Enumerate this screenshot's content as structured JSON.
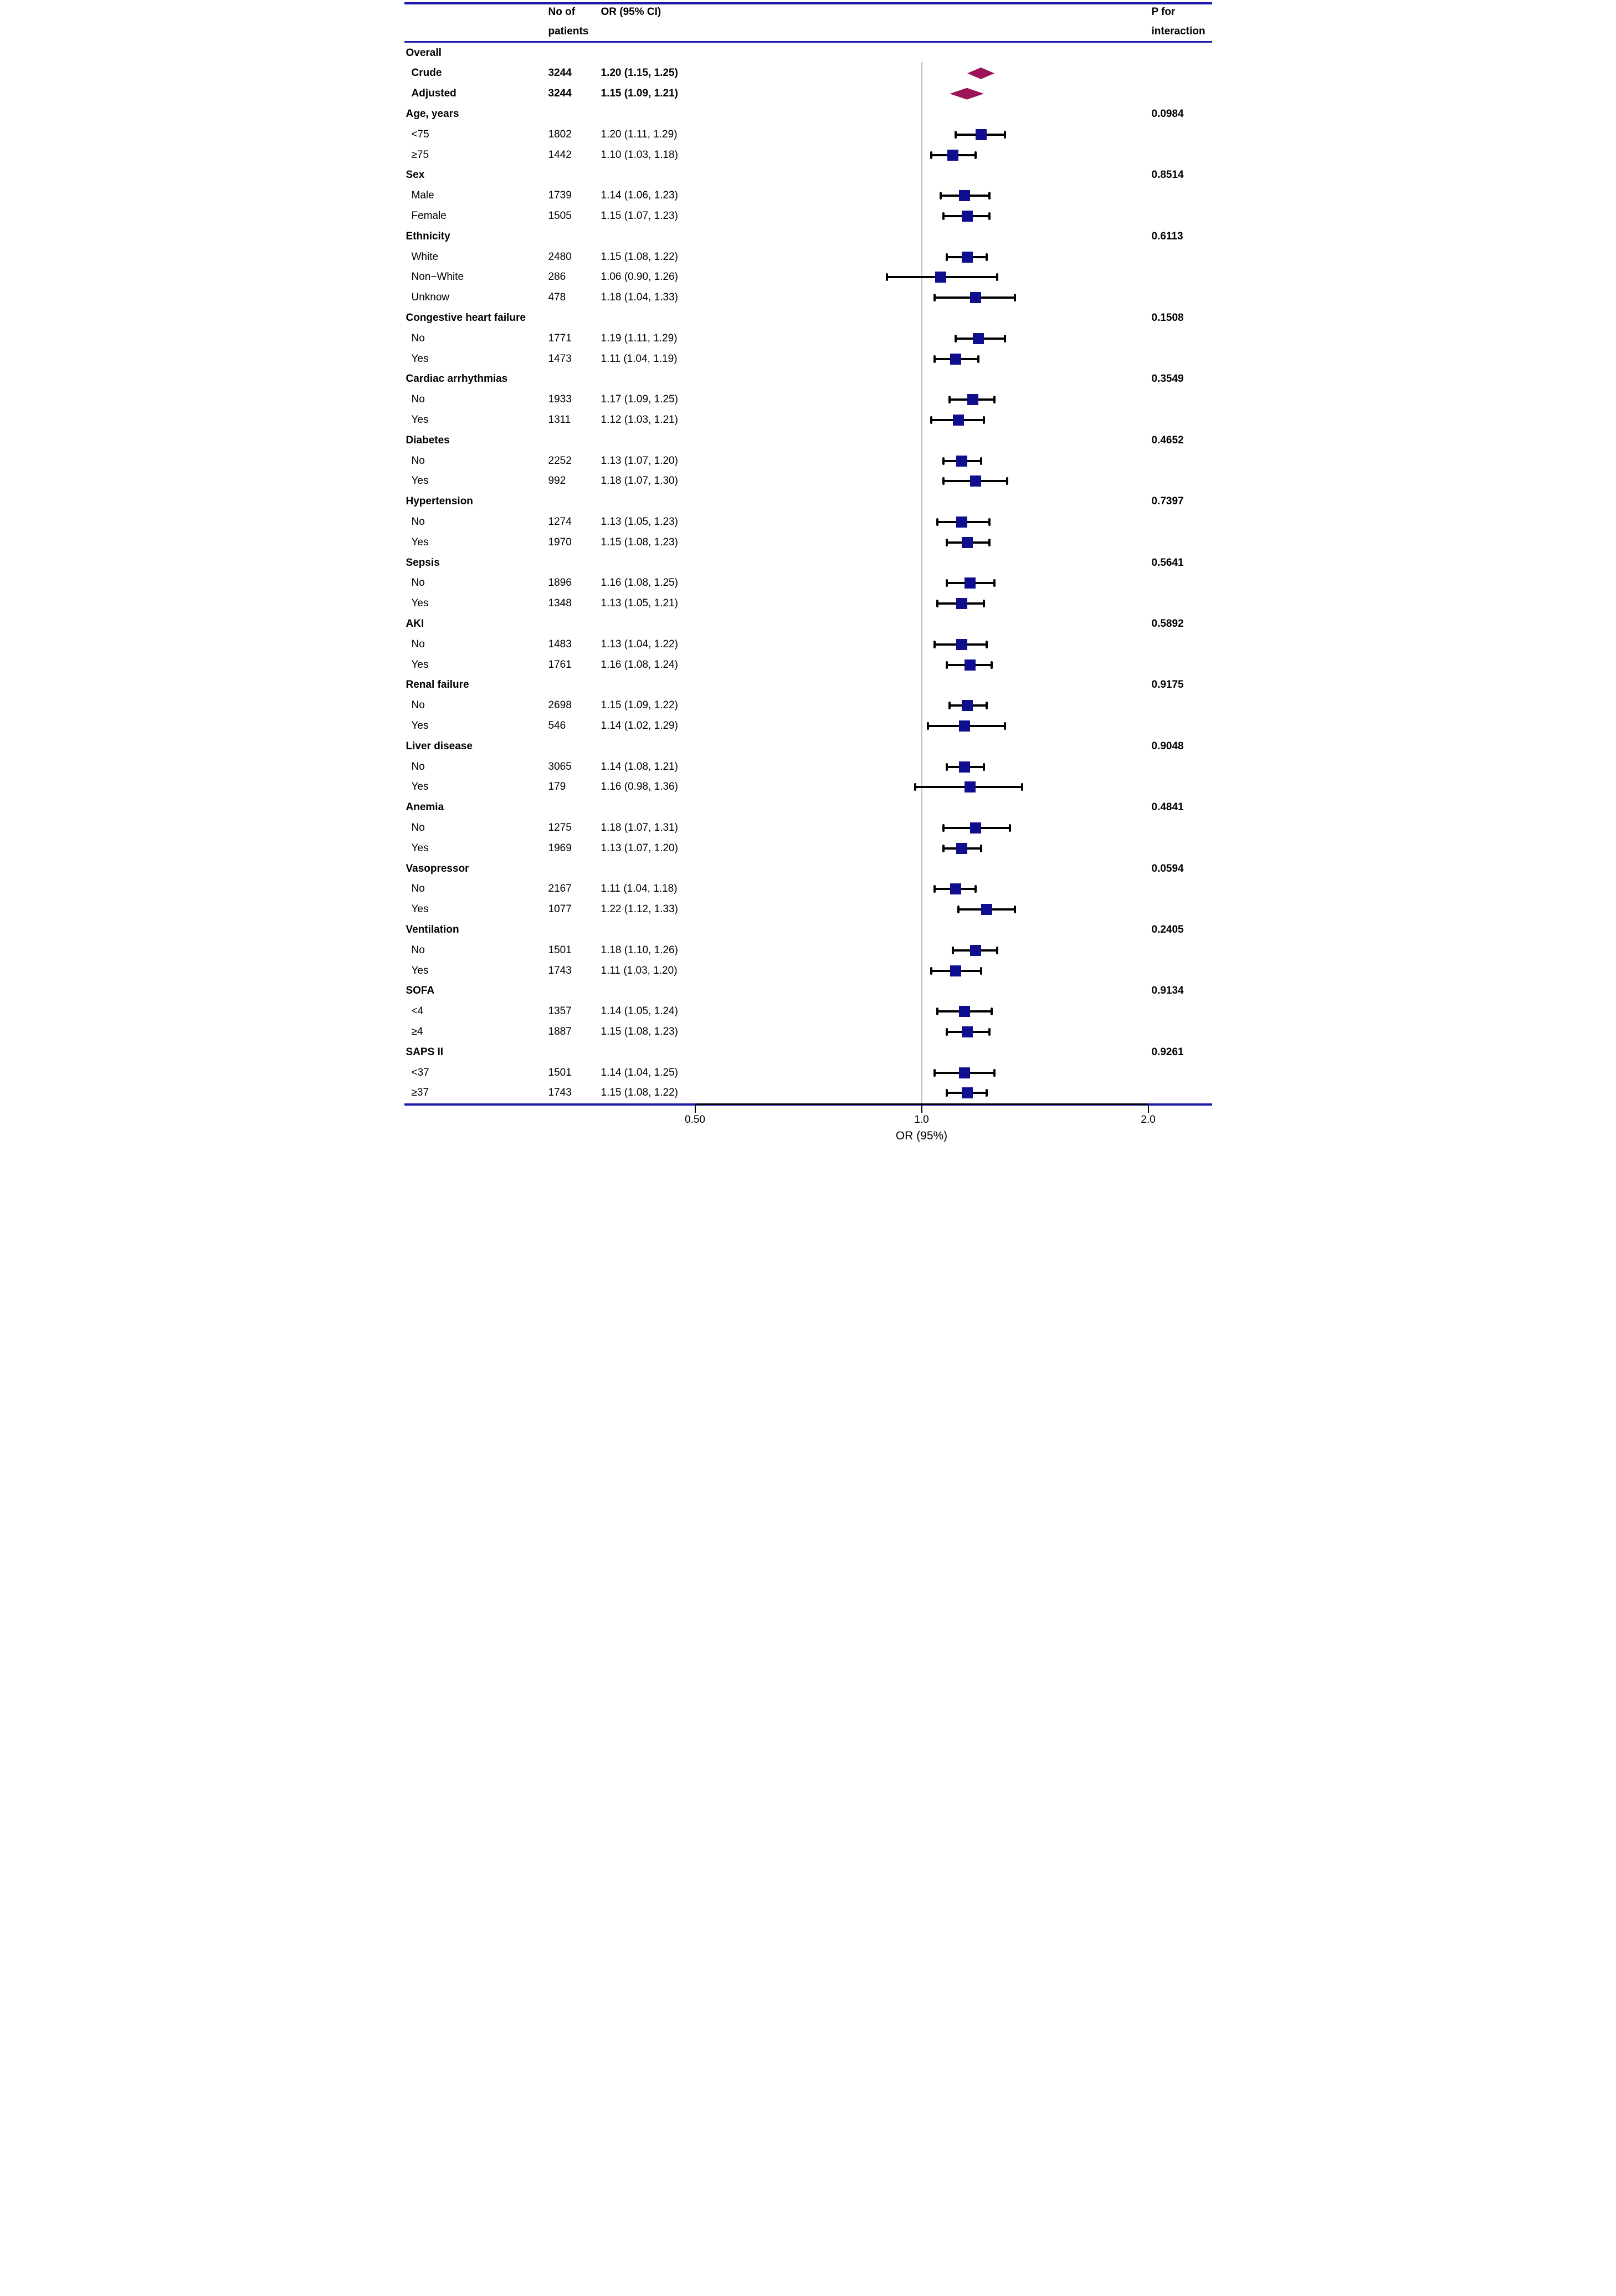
{
  "header": {
    "patients_line1": "No of",
    "patients_line2": "patients",
    "or_col": "OR (95% CI)",
    "p_line1": "P for",
    "p_line2": "interaction"
  },
  "colors": {
    "marker_square": "#0e0e8e",
    "summary_diamond": "#9c1358",
    "rule_navy": "#1b1bab",
    "reference_line_gray": "#bdbdbd",
    "whisker_black": "#000000"
  },
  "chart_data": {
    "type": "forest",
    "xscale": "log",
    "xlabel": "OR (95%)",
    "x_ticks": [
      0.5,
      1.0,
      2.0
    ],
    "x_tick_labels": [
      "0.50",
      "1.0",
      "2.0"
    ],
    "xlim": [
      0.42,
      2.35
    ],
    "ref_line": 1.0,
    "legend_position": "none",
    "grid": false,
    "rows": [
      {
        "kind": "group",
        "label": "Overall",
        "p": ""
      },
      {
        "kind": "summary",
        "label": "Crude",
        "n": "3244",
        "or_text": "1.20 (1.15, 1.25)",
        "or": 1.2,
        "lo": 1.15,
        "hi": 1.25
      },
      {
        "kind": "summary",
        "label": "Adjusted",
        "n": "3244",
        "or_text": "1.15 (1.09, 1.21)",
        "or": 1.15,
        "lo": 1.09,
        "hi": 1.21
      },
      {
        "kind": "group",
        "label": "Age, years",
        "p": "0.0984"
      },
      {
        "kind": "item",
        "label": "<75",
        "n": "1802",
        "or_text": "1.20 (1.11, 1.29)",
        "or": 1.2,
        "lo": 1.11,
        "hi": 1.29
      },
      {
        "kind": "item",
        "label": "≥75",
        "n": "1442",
        "or_text": "1.10 (1.03, 1.18)",
        "or": 1.1,
        "lo": 1.03,
        "hi": 1.18
      },
      {
        "kind": "group",
        "label": "Sex",
        "p": "0.8514"
      },
      {
        "kind": "item",
        "label": "Male",
        "n": "1739",
        "or_text": "1.14 (1.06, 1.23)",
        "or": 1.14,
        "lo": 1.06,
        "hi": 1.23
      },
      {
        "kind": "item",
        "label": "Female",
        "n": "1505",
        "or_text": "1.15 (1.07, 1.23)",
        "or": 1.15,
        "lo": 1.07,
        "hi": 1.23
      },
      {
        "kind": "group",
        "label": "Ethnicity",
        "p": "0.6113"
      },
      {
        "kind": "item",
        "label": "White",
        "n": "2480",
        "or_text": "1.15 (1.08, 1.22)",
        "or": 1.15,
        "lo": 1.08,
        "hi": 1.22
      },
      {
        "kind": "item",
        "label": "Non−White",
        "n": "286",
        "or_text": "1.06 (0.90, 1.26)",
        "or": 1.06,
        "lo": 0.9,
        "hi": 1.26
      },
      {
        "kind": "item",
        "label": "Unknow",
        "n": "478",
        "or_text": "1.18 (1.04, 1.33)",
        "or": 1.18,
        "lo": 1.04,
        "hi": 1.33
      },
      {
        "kind": "group",
        "label": "Congestive heart failure",
        "p": "0.1508"
      },
      {
        "kind": "item",
        "label": "No",
        "n": "1771",
        "or_text": "1.19 (1.11, 1.29)",
        "or": 1.19,
        "lo": 1.11,
        "hi": 1.29
      },
      {
        "kind": "item",
        "label": "Yes",
        "n": "1473",
        "or_text": "1.11 (1.04, 1.19)",
        "or": 1.11,
        "lo": 1.04,
        "hi": 1.19
      },
      {
        "kind": "group",
        "label": "Cardiac arrhythmias",
        "p": "0.3549"
      },
      {
        "kind": "item",
        "label": "No",
        "n": "1933",
        "or_text": "1.17 (1.09, 1.25)",
        "or": 1.17,
        "lo": 1.09,
        "hi": 1.25
      },
      {
        "kind": "item",
        "label": "Yes",
        "n": "1311",
        "or_text": "1.12 (1.03, 1.21)",
        "or": 1.12,
        "lo": 1.03,
        "hi": 1.21
      },
      {
        "kind": "group",
        "label": "Diabetes",
        "p": "0.4652"
      },
      {
        "kind": "item",
        "label": "No",
        "n": "2252",
        "or_text": "1.13 (1.07, 1.20)",
        "or": 1.13,
        "lo": 1.07,
        "hi": 1.2
      },
      {
        "kind": "item",
        "label": "Yes",
        "n": "992",
        "or_text": "1.18 (1.07, 1.30)",
        "or": 1.18,
        "lo": 1.07,
        "hi": 1.3
      },
      {
        "kind": "group",
        "label": "Hypertension",
        "p": "0.7397"
      },
      {
        "kind": "item",
        "label": "No",
        "n": "1274",
        "or_text": "1.13 (1.05, 1.23)",
        "or": 1.13,
        "lo": 1.05,
        "hi": 1.23
      },
      {
        "kind": "item",
        "label": "Yes",
        "n": "1970",
        "or_text": "1.15 (1.08, 1.23)",
        "or": 1.15,
        "lo": 1.08,
        "hi": 1.23
      },
      {
        "kind": "group",
        "label": "Sepsis",
        "p": "0.5641"
      },
      {
        "kind": "item",
        "label": "No",
        "n": "1896",
        "or_text": "1.16 (1.08, 1.25)",
        "or": 1.16,
        "lo": 1.08,
        "hi": 1.25
      },
      {
        "kind": "item",
        "label": "Yes",
        "n": "1348",
        "or_text": "1.13 (1.05, 1.21)",
        "or": 1.13,
        "lo": 1.05,
        "hi": 1.21
      },
      {
        "kind": "group",
        "label": "AKI",
        "p": "0.5892"
      },
      {
        "kind": "item",
        "label": "No",
        "n": "1483",
        "or_text": "1.13 (1.04, 1.22)",
        "or": 1.13,
        "lo": 1.04,
        "hi": 1.22
      },
      {
        "kind": "item",
        "label": "Yes",
        "n": "1761",
        "or_text": "1.16 (1.08, 1.24)",
        "or": 1.16,
        "lo": 1.08,
        "hi": 1.24
      },
      {
        "kind": "group",
        "label": "Renal failure",
        "p": "0.9175"
      },
      {
        "kind": "item",
        "label": "No",
        "n": "2698",
        "or_text": "1.15 (1.09, 1.22)",
        "or": 1.15,
        "lo": 1.09,
        "hi": 1.22
      },
      {
        "kind": "item",
        "label": "Yes",
        "n": "546",
        "or_text": "1.14 (1.02, 1.29)",
        "or": 1.14,
        "lo": 1.02,
        "hi": 1.29
      },
      {
        "kind": "group",
        "label": "Liver disease",
        "p": "0.9048"
      },
      {
        "kind": "item",
        "label": "No",
        "n": "3065",
        "or_text": "1.14 (1.08, 1.21)",
        "or": 1.14,
        "lo": 1.08,
        "hi": 1.21
      },
      {
        "kind": "item",
        "label": "Yes",
        "n": "179",
        "or_text": "1.16 (0.98, 1.36)",
        "or": 1.16,
        "lo": 0.98,
        "hi": 1.36
      },
      {
        "kind": "group",
        "label": "Anemia",
        "p": "0.4841"
      },
      {
        "kind": "item",
        "label": "No",
        "n": "1275",
        "or_text": "1.18 (1.07, 1.31)",
        "or": 1.18,
        "lo": 1.07,
        "hi": 1.31
      },
      {
        "kind": "item",
        "label": "Yes",
        "n": "1969",
        "or_text": "1.13 (1.07, 1.20)",
        "or": 1.13,
        "lo": 1.07,
        "hi": 1.2
      },
      {
        "kind": "group",
        "label": "Vasopressor",
        "p": "0.0594"
      },
      {
        "kind": "item",
        "label": "No",
        "n": "2167",
        "or_text": "1.11 (1.04, 1.18)",
        "or": 1.11,
        "lo": 1.04,
        "hi": 1.18
      },
      {
        "kind": "item",
        "label": "Yes",
        "n": "1077",
        "or_text": "1.22 (1.12, 1.33)",
        "or": 1.22,
        "lo": 1.12,
        "hi": 1.33
      },
      {
        "kind": "group",
        "label": "Ventilation",
        "p": "0.2405"
      },
      {
        "kind": "item",
        "label": "No",
        "n": "1501",
        "or_text": "1.18 (1.10, 1.26)",
        "or": 1.18,
        "lo": 1.1,
        "hi": 1.26
      },
      {
        "kind": "item",
        "label": "Yes",
        "n": "1743",
        "or_text": "1.11 (1.03, 1.20)",
        "or": 1.11,
        "lo": 1.03,
        "hi": 1.2
      },
      {
        "kind": "group",
        "label": "SOFA",
        "p": "0.9134"
      },
      {
        "kind": "item",
        "label": "<4",
        "n": "1357",
        "or_text": "1.14 (1.05, 1.24)",
        "or": 1.14,
        "lo": 1.05,
        "hi": 1.24
      },
      {
        "kind": "item",
        "label": "≥4",
        "n": "1887",
        "or_text": "1.15 (1.08, 1.23)",
        "or": 1.15,
        "lo": 1.08,
        "hi": 1.23
      },
      {
        "kind": "group",
        "label": "SAPS II",
        "p": "0.9261"
      },
      {
        "kind": "item",
        "label": "<37",
        "n": "1501",
        "or_text": "1.14 (1.04, 1.25)",
        "or": 1.14,
        "lo": 1.04,
        "hi": 1.25
      },
      {
        "kind": "item",
        "label": "≥37",
        "n": "1743",
        "or_text": "1.15 (1.08, 1.22)",
        "or": 1.15,
        "lo": 1.08,
        "hi": 1.22
      }
    ]
  }
}
